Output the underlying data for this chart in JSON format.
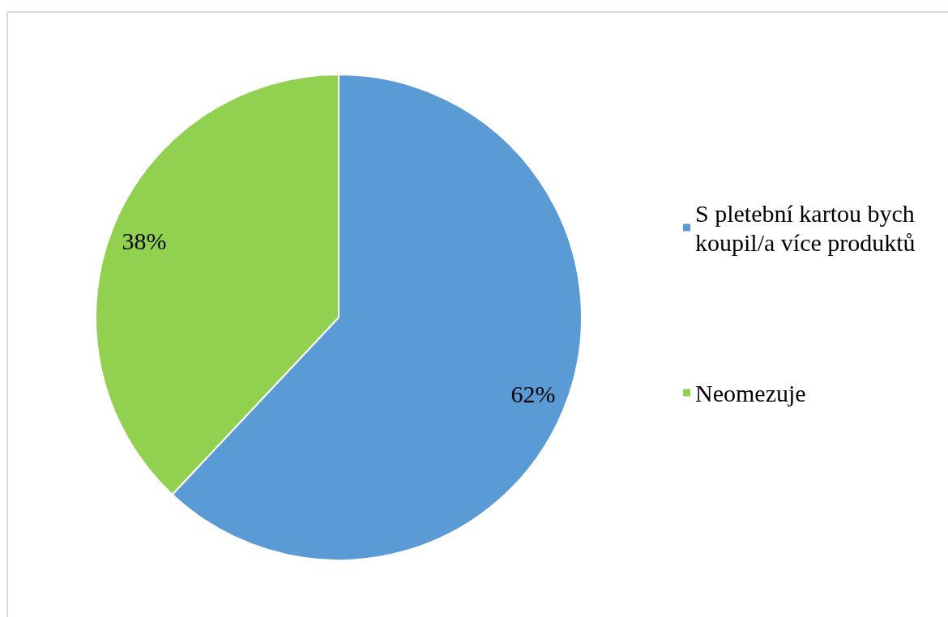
{
  "chart_data": {
    "type": "pie",
    "categories": [
      "S pletební kartou bych koupil/a více produktů",
      "Neomezuje"
    ],
    "values": [
      62,
      38
    ],
    "value_labels": [
      "62%",
      "38%"
    ],
    "colors": [
      "#5b9bd5",
      "#92d050"
    ],
    "legend": "right"
  }
}
